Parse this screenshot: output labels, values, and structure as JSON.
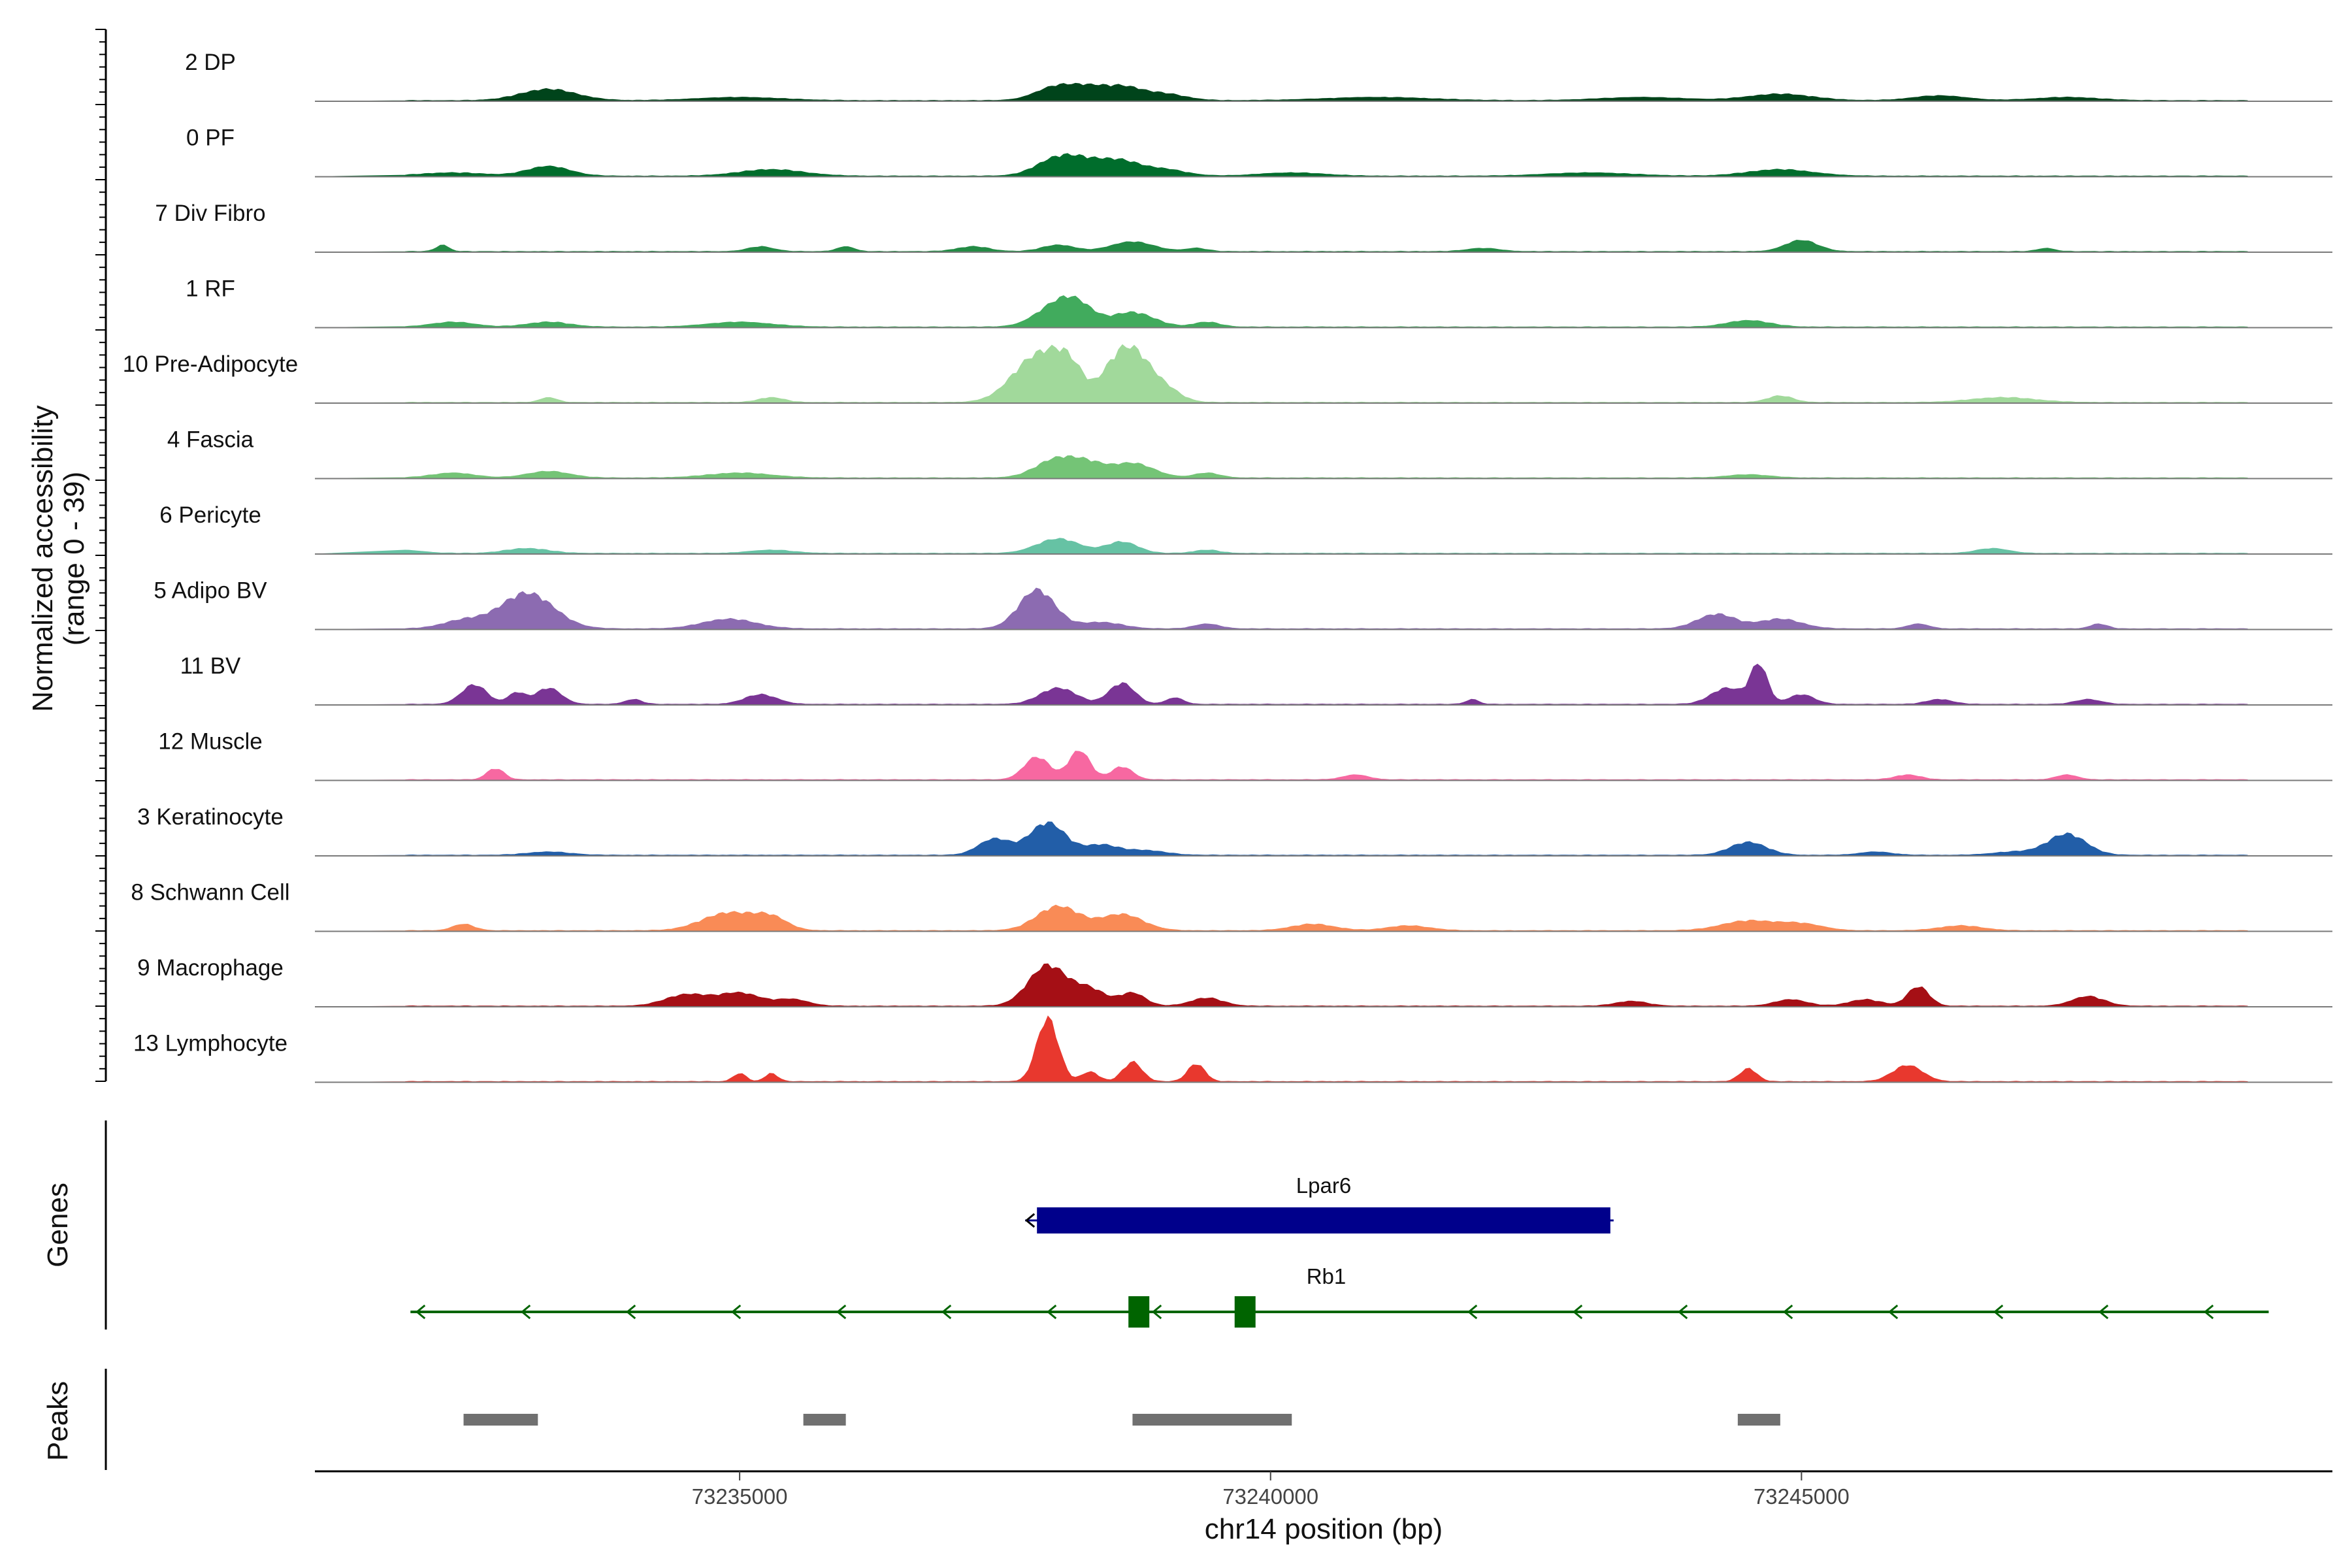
{
  "chart_data": {
    "type": "area",
    "title": "",
    "ylabel": "Normalized accessibility",
    "ylabel_range": "(range 0 - 39)",
    "xlabel": "chr14 position (bp)",
    "xlim": [
      73231000,
      73250000
    ],
    "ylim": [
      0,
      39
    ],
    "x_ticks": [
      73235000,
      73240000,
      73245000
    ],
    "x_tick_labels": [
      "73235000",
      "73240000",
      "73245000"
    ],
    "tracks": [
      {
        "name": "2 DP",
        "color": "#00441b",
        "peaks": [
          [
            73233200,
            7,
            260
          ],
          [
            73235000,
            2,
            400
          ],
          [
            73238000,
            9,
            200
          ],
          [
            73238300,
            5,
            150
          ],
          [
            73238600,
            8,
            180
          ],
          [
            73239000,
            4,
            200
          ],
          [
            73241000,
            2,
            500
          ],
          [
            73243500,
            2,
            400
          ],
          [
            73244800,
            4,
            300
          ],
          [
            73246300,
            3,
            250
          ],
          [
            73247500,
            2,
            300
          ]
        ]
      },
      {
        "name": "0 PF",
        "color": "#006d2c",
        "peaks": [
          [
            73232300,
            2,
            300
          ],
          [
            73233200,
            6,
            200
          ],
          [
            73235300,
            4,
            300
          ],
          [
            73238000,
            11,
            200
          ],
          [
            73238300,
            6,
            180
          ],
          [
            73238600,
            8,
            180
          ],
          [
            73239000,
            4,
            200
          ],
          [
            73240200,
            2,
            300
          ],
          [
            73243000,
            2,
            400
          ],
          [
            73244800,
            4,
            300
          ]
        ]
      },
      {
        "name": "7 Div Fibro",
        "color": "#238b45",
        "peaks": [
          [
            73232200,
            4,
            60
          ],
          [
            73235200,
            3,
            120
          ],
          [
            73236000,
            3,
            80
          ],
          [
            73237200,
            3,
            150
          ],
          [
            73238000,
            4,
            150
          ],
          [
            73238700,
            6,
            200
          ],
          [
            73239300,
            2,
            100
          ],
          [
            73242000,
            2,
            150
          ],
          [
            73245000,
            7,
            150
          ],
          [
            73247300,
            2,
            80
          ]
        ]
      },
      {
        "name": "1 RF",
        "color": "#41ab5d",
        "peaks": [
          [
            73232300,
            3,
            200
          ],
          [
            73233200,
            3,
            200
          ],
          [
            73235000,
            3,
            300
          ],
          [
            73238000,
            14,
            200
          ],
          [
            73238200,
            8,
            150
          ],
          [
            73238700,
            9,
            200
          ],
          [
            73239400,
            3,
            120
          ],
          [
            73244500,
            4,
            200
          ]
        ]
      },
      {
        "name": "10 Pre-Adipocyte",
        "color": "#a1d99b",
        "peaks": [
          [
            73233200,
            3,
            80
          ],
          [
            73235300,
            3,
            120
          ],
          [
            73237800,
            28,
            230
          ],
          [
            73238100,
            18,
            150
          ],
          [
            73238500,
            12,
            120
          ],
          [
            73238700,
            30,
            160
          ],
          [
            73239000,
            8,
            150
          ],
          [
            73244800,
            4,
            120
          ],
          [
            73246900,
            3,
            300
          ]
        ]
      },
      {
        "name": "4 Fascia",
        "color": "#74c476",
        "peaks": [
          [
            73232300,
            3,
            200
          ],
          [
            73233200,
            4,
            200
          ],
          [
            73235000,
            3,
            300
          ],
          [
            73238000,
            12,
            200
          ],
          [
            73238300,
            6,
            150
          ],
          [
            73238700,
            9,
            200
          ],
          [
            73239400,
            3,
            120
          ],
          [
            73244500,
            2,
            200
          ]
        ]
      },
      {
        "name": "6 Pericyte",
        "color": "#66c2a4",
        "peaks": [
          [
            73231800,
            2,
            200
          ],
          [
            73233000,
            3,
            200
          ],
          [
            73235300,
            2,
            200
          ],
          [
            73238000,
            9,
            200
          ],
          [
            73238600,
            7,
            150
          ],
          [
            73239400,
            2,
            120
          ],
          [
            73246800,
            3,
            150
          ]
        ]
      },
      {
        "name": "5 Adipo BV",
        "color": "#8c6bb1",
        "peaks": [
          [
            73233000,
            22,
            250
          ],
          [
            73232400,
            5,
            200
          ],
          [
            73234900,
            6,
            250
          ],
          [
            73237800,
            24,
            170
          ],
          [
            73238400,
            4,
            200
          ],
          [
            73239400,
            3,
            120
          ],
          [
            73244200,
            9,
            180
          ],
          [
            73244800,
            6,
            200
          ],
          [
            73246100,
            3,
            100
          ],
          [
            73247800,
            3,
            80
          ]
        ]
      },
      {
        "name": "11 BV",
        "color": "#7a3595",
        "peaks": [
          [
            73232500,
            12,
            120
          ],
          [
            73233200,
            10,
            120
          ],
          [
            73232900,
            7,
            80
          ],
          [
            73234000,
            3,
            80
          ],
          [
            73235200,
            6,
            150
          ],
          [
            73238000,
            10,
            170
          ],
          [
            73238600,
            13,
            120
          ],
          [
            73239100,
            4,
            80
          ],
          [
            73244300,
            10,
            150
          ],
          [
            73244600,
            24,
            80
          ],
          [
            73245000,
            6,
            120
          ],
          [
            73241900,
            3,
            60
          ],
          [
            73246300,
            3,
            120
          ],
          [
            73247700,
            3,
            120
          ]
        ]
      },
      {
        "name": "12 Muscle",
        "color": "#f768a1",
        "peaks": [
          [
            73232700,
            7,
            80
          ],
          [
            73237800,
            14,
            120
          ],
          [
            73238200,
            18,
            100
          ],
          [
            73238600,
            8,
            100
          ],
          [
            73240800,
            3,
            120
          ],
          [
            73246000,
            3,
            120
          ],
          [
            73247500,
            3,
            100
          ]
        ]
      },
      {
        "name": "3 Keratinocyte",
        "color": "#225ea8",
        "peaks": [
          [
            73237400,
            10,
            150
          ],
          [
            73237900,
            20,
            170
          ],
          [
            73238400,
            6,
            150
          ],
          [
            73238800,
            3,
            200
          ],
          [
            73233200,
            2,
            200
          ],
          [
            73244500,
            8,
            170
          ],
          [
            73245700,
            2,
            150
          ],
          [
            73247500,
            13,
            180
          ],
          [
            73247000,
            2,
            200
          ]
        ]
      },
      {
        "name": "8 Schwann Cell",
        "color": "#f98b56",
        "peaks": [
          [
            73232400,
            4,
            100
          ],
          [
            73234900,
            11,
            250
          ],
          [
            73235300,
            7,
            150
          ],
          [
            73238000,
            15,
            200
          ],
          [
            73238600,
            10,
            200
          ],
          [
            73240400,
            4,
            200
          ],
          [
            73241300,
            3,
            200
          ],
          [
            73244500,
            6,
            250
          ],
          [
            73245000,
            4,
            200
          ],
          [
            73246500,
            3,
            200
          ]
        ]
      },
      {
        "name": "9 Macrophage",
        "color": "#a50f15",
        "peaks": [
          [
            73234500,
            7,
            200
          ],
          [
            73235000,
            8,
            200
          ],
          [
            73235500,
            4,
            150
          ],
          [
            73237900,
            25,
            180
          ],
          [
            73238300,
            10,
            150
          ],
          [
            73238700,
            8,
            120
          ],
          [
            73239400,
            5,
            150
          ],
          [
            73243400,
            3,
            150
          ],
          [
            73244900,
            4,
            150
          ],
          [
            73245600,
            4,
            150
          ],
          [
            73246100,
            12,
            100
          ],
          [
            73247700,
            6,
            150
          ]
        ]
      },
      {
        "name": "13 Lymphocyte",
        "color": "#e8382e",
        "peaks": [
          [
            73235000,
            5,
            60
          ],
          [
            73235300,
            5,
            60
          ],
          [
            73237900,
            39,
            100
          ],
          [
            73238700,
            12,
            90
          ],
          [
            73239300,
            11,
            80
          ],
          [
            73238300,
            6,
            80
          ],
          [
            73244500,
            8,
            80
          ],
          [
            73246000,
            10,
            140
          ]
        ]
      }
    ],
    "genes": [
      {
        "name": "Lpar6",
        "start": 73237800,
        "end": 73243200,
        "strand": "-",
        "color": "#00008b"
      },
      {
        "name": "Rb1",
        "start": 73231900,
        "end": 73249400,
        "strand": "-",
        "color": "#006400",
        "exons": [
          [
            73238600,
            73238800
          ],
          [
            73239600,
            73239800
          ]
        ]
      }
    ],
    "peak_regions": [
      [
        73232400,
        73233100
      ],
      [
        73235600,
        73236000
      ],
      [
        73238700,
        73240200
      ],
      [
        73244400,
        73244800
      ]
    ],
    "sections": {
      "genes": "Genes",
      "peaks": "Peaks"
    }
  }
}
